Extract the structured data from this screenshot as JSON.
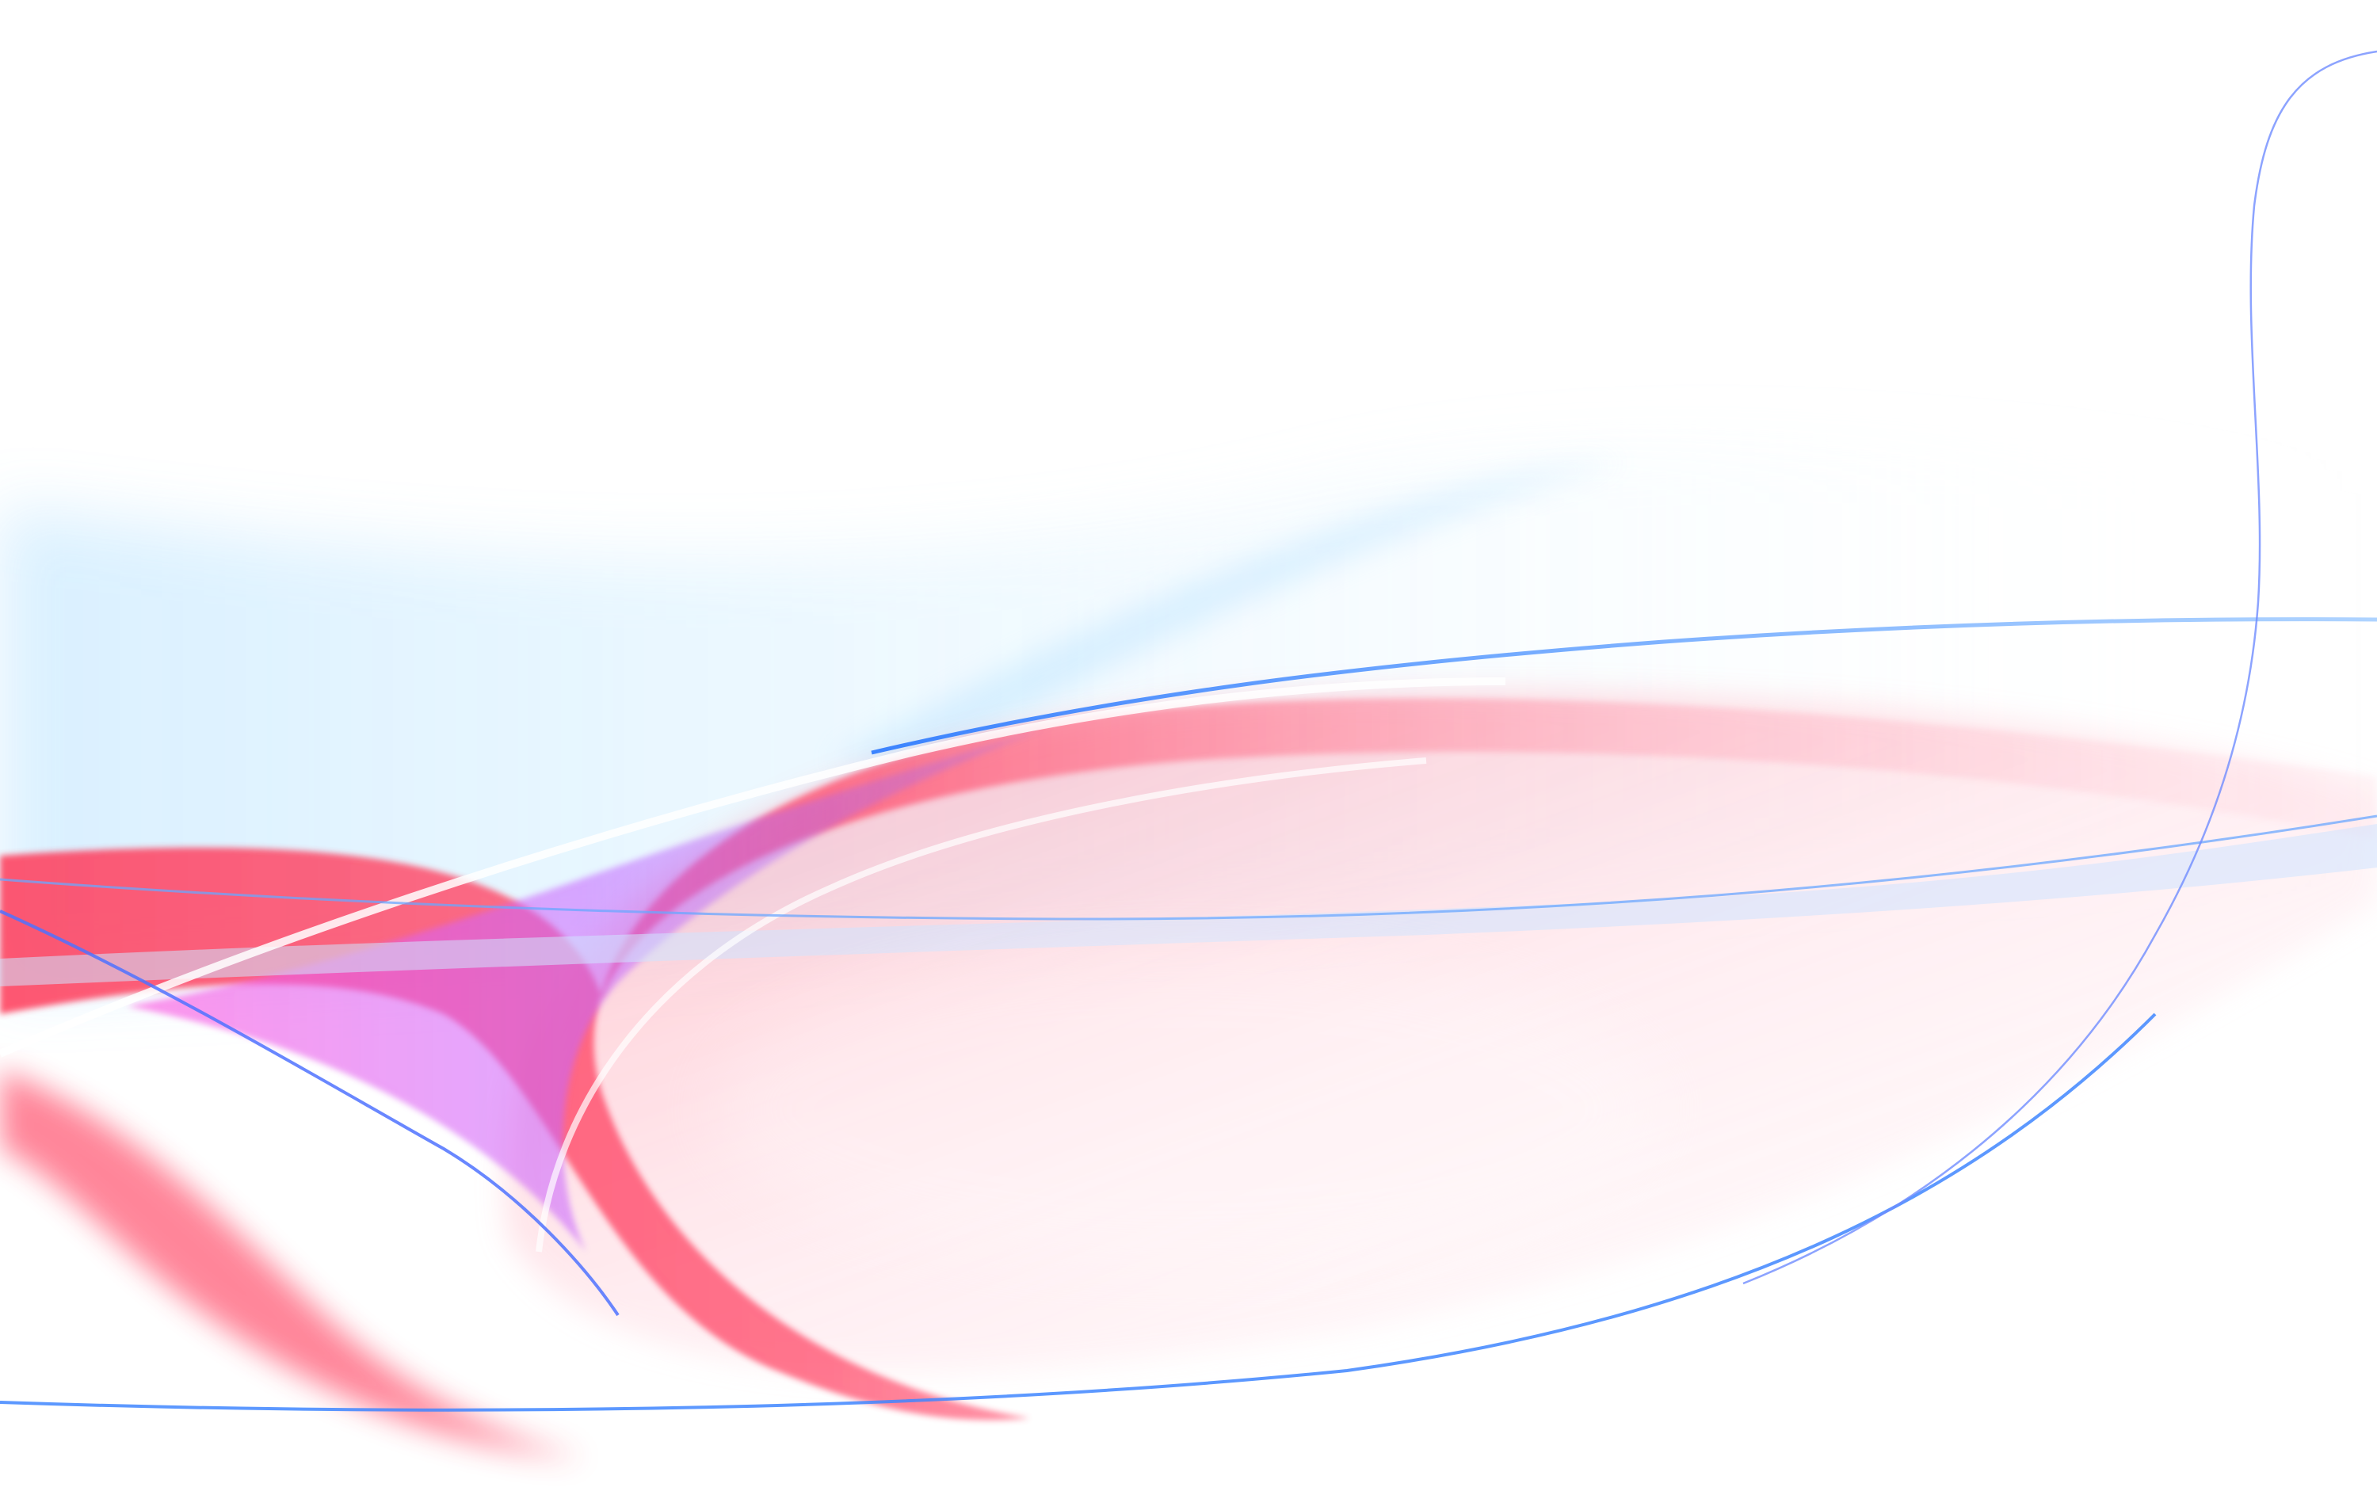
{
  "palette": {
    "background": "#ffffff",
    "red": "#ff3c5a",
    "pink": "#ff7fa0",
    "magenta": "#ff58e0",
    "violet": "#8a66ff",
    "blue": "#2a78ff",
    "light_blue": "#a8dcff"
  }
}
